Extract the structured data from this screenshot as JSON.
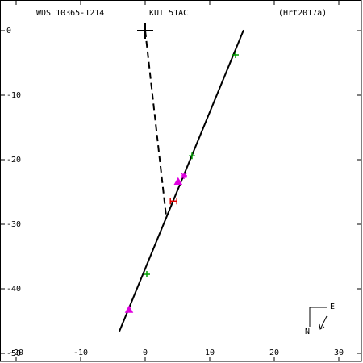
{
  "chart_data": {
    "type": "scatter",
    "title_left": "WDS 10365-1214",
    "title_center": "KUI  51AC",
    "title_right": "(Hrt2017a)",
    "compass_n": "N",
    "compass_e": "E",
    "xlim": [
      -22.5,
      33.5
    ],
    "ylim": [
      -51.25,
      4.75
    ],
    "xticks": [
      -20,
      -10,
      0,
      10,
      20,
      30
    ],
    "yticks": [
      0,
      -10,
      -20,
      -30,
      -40,
      -50
    ],
    "lines": [
      {
        "color": "#000000",
        "dashed": false,
        "x": [
          -4,
          15.25
        ],
        "values": [
          -46.6,
          0.1
        ]
      },
      {
        "color": "#000000",
        "dashed": true,
        "x": [
          0,
          3.25
        ],
        "values": [
          0,
          -28.75
        ]
      }
    ],
    "series": [
      {
        "marker": "bigplus",
        "color": "#000000",
        "x": [
          0
        ],
        "values": [
          0
        ]
      },
      {
        "marker": "plus",
        "color": "#00a000",
        "x": [
          14,
          7.25,
          0.25
        ],
        "values": [
          -3.75,
          -19.4,
          -37.75
        ]
      },
      {
        "marker": "triangle",
        "color": "#e000e0",
        "x": [
          5.1,
          -2.5
        ],
        "values": [
          -23.4,
          -43.25
        ]
      },
      {
        "marker": "star",
        "color": "#e000e0",
        "x": [
          6
        ],
        "values": [
          -22.5
        ]
      },
      {
        "marker": "h",
        "color": "#e00000",
        "x": [
          4.4
        ],
        "values": [
          -26.4
        ]
      }
    ]
  }
}
